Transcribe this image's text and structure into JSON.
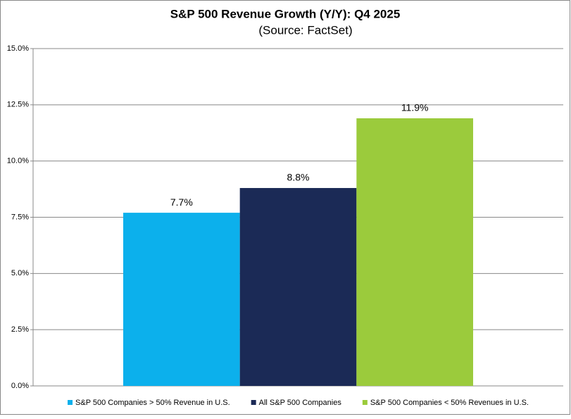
{
  "chart_data": {
    "type": "bar",
    "title": "S&P 500 Revenue Growth (Y/Y): Q4 2025",
    "subtitle": "(Source: FactSet)",
    "categories": [
      null
    ],
    "series": [
      {
        "name": "S&P 500 Companies > 50% Revenue in U.S.",
        "color": "#0cb0ec",
        "values": [
          7.7
        ],
        "value_labels": [
          "7.7%"
        ]
      },
      {
        "name": "All S&P 500 Companies",
        "color": "#1b2a56",
        "values": [
          8.8
        ],
        "value_labels": [
          "8.8%"
        ]
      },
      {
        "name": "S&P 500 Companies < 50% Revenues in U.S.",
        "color": "#9bcb3c",
        "values": [
          11.9
        ],
        "value_labels": [
          "11.9%"
        ]
      }
    ],
    "ylim": [
      0,
      15
    ],
    "yticks": [
      {
        "value": 0,
        "label": "0.0%"
      },
      {
        "value": 2.5,
        "label": "2.5%"
      },
      {
        "value": 5,
        "label": "5.0%"
      },
      {
        "value": 7.5,
        "label": "7.5%"
      },
      {
        "value": 10,
        "label": "10.0%"
      },
      {
        "value": 12.5,
        "label": "12.5%"
      },
      {
        "value": 15,
        "label": "15.0%"
      }
    ],
    "grid": true,
    "legend": "bottom"
  }
}
